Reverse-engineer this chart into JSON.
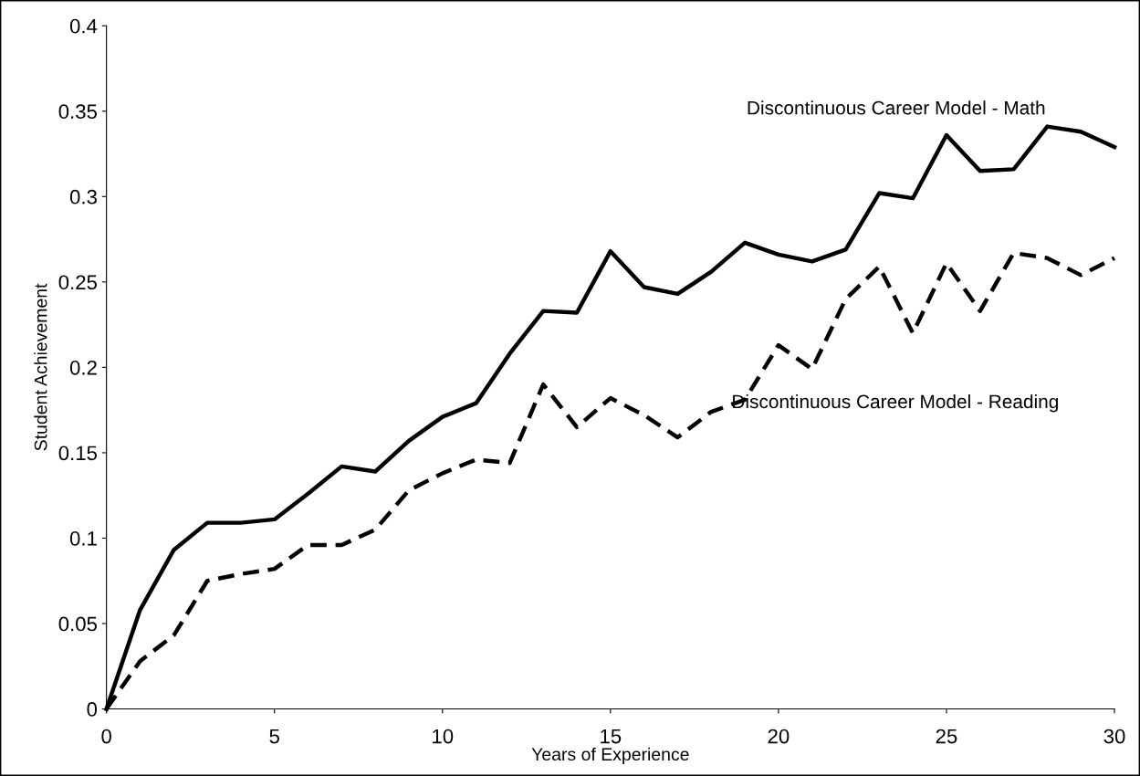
{
  "chart_data": {
    "type": "line",
    "xlabel": "Years of Experience",
    "ylabel": "Student Achievement",
    "x": [
      0,
      1,
      2,
      3,
      4,
      5,
      6,
      7,
      8,
      9,
      10,
      11,
      12,
      13,
      14,
      15,
      16,
      17,
      18,
      19,
      20,
      21,
      22,
      23,
      24,
      25,
      26,
      27,
      28,
      29,
      30
    ],
    "series": [
      {
        "name": "Discontinuous Career Model - Math",
        "color": "#000000",
        "line_style": "solid",
        "values": [
          0,
          0.058,
          0.093,
          0.109,
          0.109,
          0.111,
          0.126,
          0.142,
          0.139,
          0.157,
          0.171,
          0.179,
          0.208,
          0.233,
          0.232,
          0.268,
          0.247,
          0.243,
          0.256,
          0.273,
          0.266,
          0.262,
          0.269,
          0.302,
          0.299,
          0.336,
          0.315,
          0.316,
          0.341,
          0.338,
          0.329
        ]
      },
      {
        "name": "Discontinuous Career Model - Reading",
        "color": "#000000",
        "line_style": "dashed",
        "values": [
          0,
          0.028,
          0.043,
          0.075,
          0.079,
          0.082,
          0.096,
          0.096,
          0.105,
          0.128,
          0.138,
          0.146,
          0.144,
          0.19,
          0.165,
          0.182,
          0.172,
          0.159,
          0.174,
          0.181,
          0.213,
          0.199,
          0.24,
          0.259,
          0.22,
          0.261,
          0.233,
          0.267,
          0.264,
          0.254,
          0.264
        ]
      }
    ],
    "xlim": [
      0,
      30
    ],
    "xticks": [
      0,
      5,
      10,
      15,
      20,
      25,
      30
    ],
    "ylim": [
      0,
      0.4
    ],
    "yticks": [
      0,
      0.05,
      0.1,
      0.15,
      0.2,
      0.25,
      0.3,
      0.35,
      0.4
    ],
    "grid": false,
    "legend": false,
    "marker": "none"
  }
}
